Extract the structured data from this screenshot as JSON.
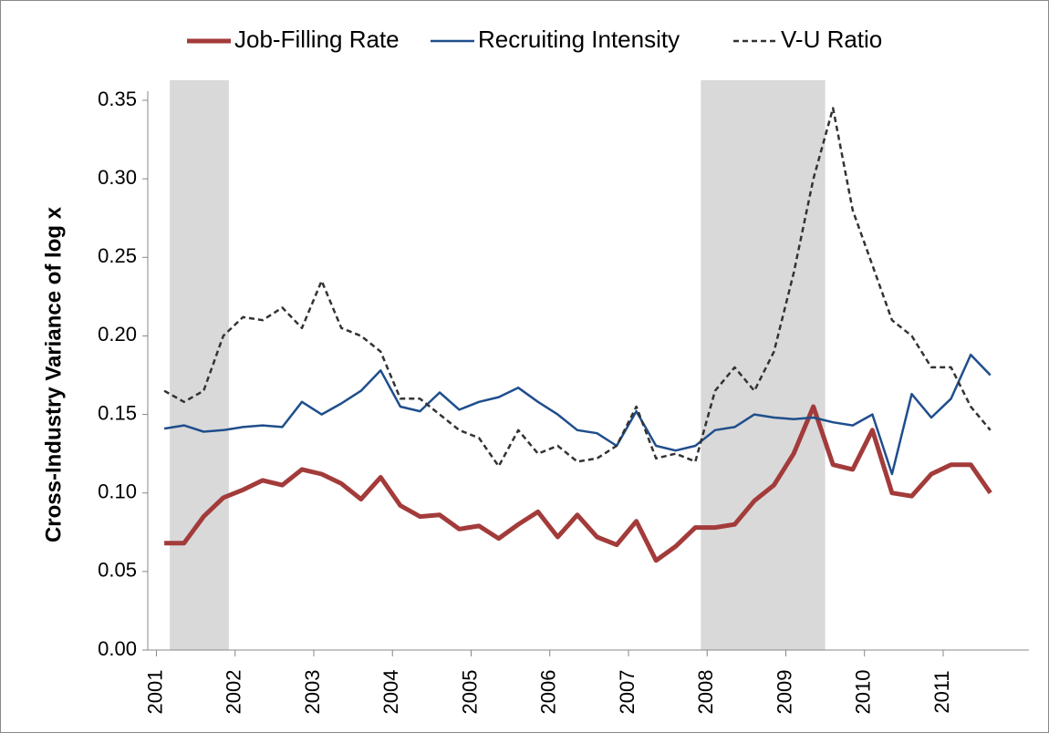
{
  "chart_data": {
    "type": "line",
    "y_label": "Cross-Industry Variance of log x",
    "x": [
      2001.1,
      2001.35,
      2001.6,
      2001.85,
      2002.1,
      2002.35,
      2002.6,
      2002.85,
      2003.1,
      2003.35,
      2003.6,
      2003.85,
      2004.1,
      2004.35,
      2004.6,
      2004.85,
      2005.1,
      2005.35,
      2005.6,
      2005.85,
      2006.1,
      2006.35,
      2006.6,
      2006.85,
      2007.1,
      2007.35,
      2007.6,
      2007.85,
      2008.1,
      2008.35,
      2008.6,
      2008.85,
      2009.1,
      2009.35,
      2009.6,
      2009.85,
      2010.1,
      2010.35,
      2010.6,
      2010.85,
      2011.1,
      2011.35,
      2011.6
    ],
    "series": [
      {
        "name": "Job-Filling Rate",
        "color": "#a33b3b",
        "width": 5,
        "dash": false,
        "values": [
          0.068,
          0.068,
          0.085,
          0.097,
          0.102,
          0.108,
          0.105,
          0.115,
          0.112,
          0.106,
          0.096,
          0.11,
          0.092,
          0.085,
          0.086,
          0.077,
          0.079,
          0.071,
          0.08,
          0.088,
          0.072,
          0.086,
          0.072,
          0.067,
          0.082,
          0.057,
          0.066,
          0.078,
          0.078,
          0.08,
          0.095,
          0.105,
          0.125,
          0.155,
          0.118,
          0.115,
          0.14,
          0.1,
          0.098,
          0.112,
          0.118,
          0.118,
          0.1
        ]
      },
      {
        "name": "Recruiting Intensity",
        "color": "#1f4e8c",
        "width": 2.5,
        "dash": false,
        "values": [
          0.141,
          0.143,
          0.139,
          0.14,
          0.142,
          0.143,
          0.142,
          0.158,
          0.15,
          0.157,
          0.165,
          0.178,
          0.155,
          0.152,
          0.164,
          0.153,
          0.158,
          0.161,
          0.167,
          0.158,
          0.15,
          0.14,
          0.138,
          0.13,
          0.152,
          0.13,
          0.127,
          0.13,
          0.14,
          0.142,
          0.15,
          0.148,
          0.147,
          0.148,
          0.145,
          0.143,
          0.15,
          0.112,
          0.163,
          0.148,
          0.16,
          0.188,
          0.175
        ]
      },
      {
        "name": "V-U Ratio",
        "color": "#333333",
        "width": 2.5,
        "dash": true,
        "values": [
          0.165,
          0.158,
          0.165,
          0.2,
          0.212,
          0.21,
          0.218,
          0.205,
          0.235,
          0.205,
          0.2,
          0.19,
          0.16,
          0.16,
          0.15,
          0.14,
          0.135,
          0.117,
          0.14,
          0.125,
          0.13,
          0.12,
          0.122,
          0.13,
          0.155,
          0.122,
          0.125,
          0.12,
          0.165,
          0.18,
          0.165,
          0.19,
          0.24,
          0.3,
          0.345,
          0.28,
          0.245,
          0.21,
          0.2,
          0.18,
          0.18,
          0.155,
          0.14
        ]
      }
    ],
    "shaded_regions": [
      [
        2001.17,
        2001.92
      ],
      [
        2007.92,
        2009.5
      ]
    ],
    "shade_color": "#d9d9d9",
    "xlim": [
      2000.89,
      2012.09
    ],
    "xticks": [
      2001,
      2002,
      2003,
      2004,
      2005,
      2006,
      2007,
      2008,
      2009,
      2010,
      2011
    ],
    "ylim": [
      0,
      0.35
    ],
    "yticks": [
      {
        "value": 0,
        "label": "0.00"
      },
      {
        "value": 0.05,
        "label": "0.05"
      },
      {
        "value": 0.1,
        "label": "0.10"
      },
      {
        "value": 0.15,
        "label": "0.15"
      },
      {
        "value": 0.2,
        "label": "0.20"
      },
      {
        "value": 0.25,
        "label": "0.25"
      },
      {
        "value": 0.3,
        "label": "0.30"
      },
      {
        "value": 0.35,
        "label": "0.35"
      }
    ],
    "grid": false,
    "legend": "top"
  }
}
